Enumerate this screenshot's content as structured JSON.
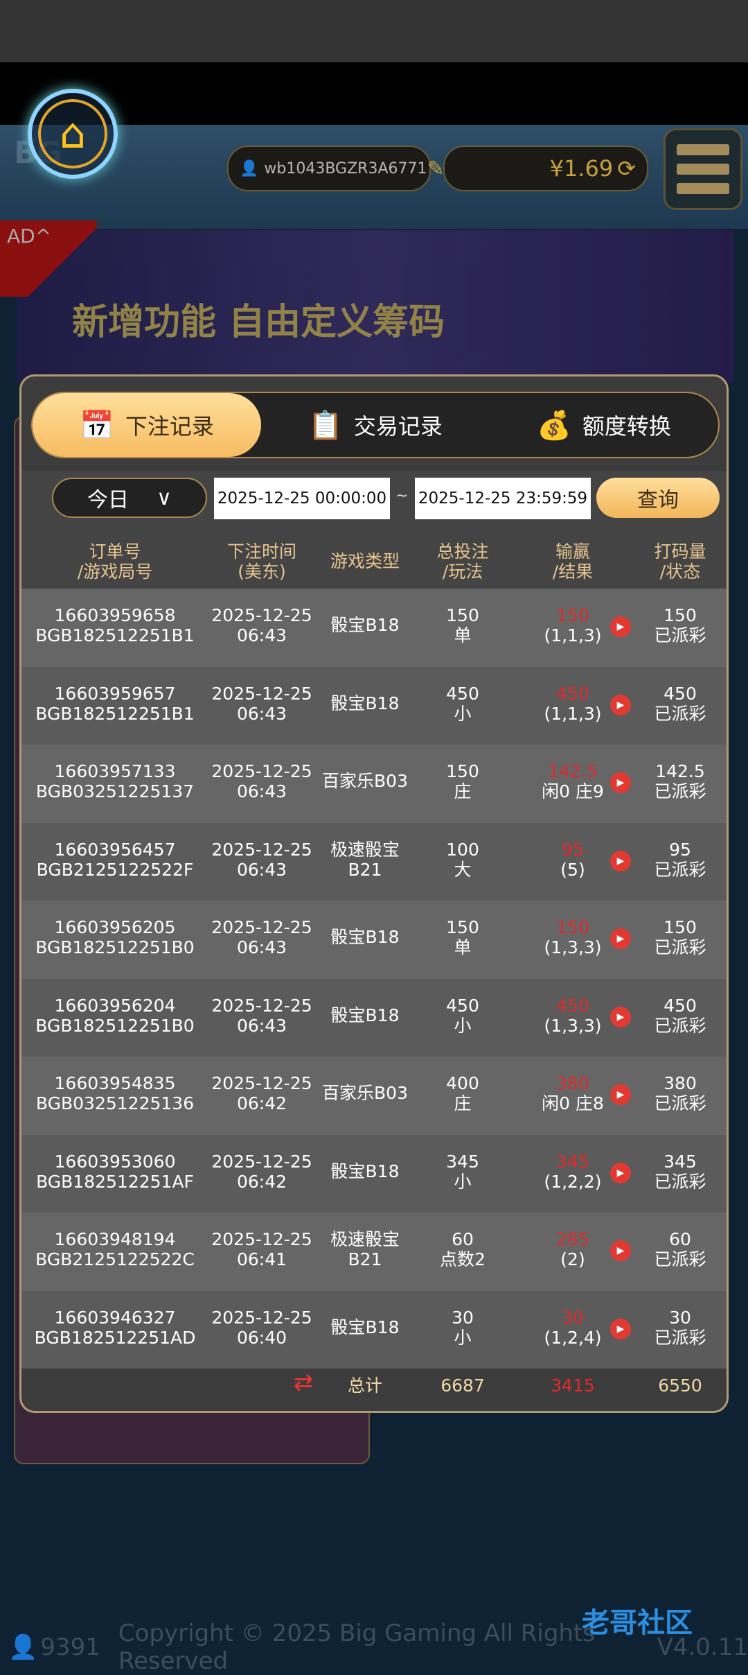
{
  "header": {
    "username": "wb1043BGZR3A6771",
    "balance": "¥1.69",
    "logo": "BG GAMING"
  },
  "ad": {
    "label": "AD^",
    "banner_text": "新增功能 自由定义筹码"
  },
  "tabs": [
    {
      "label": "下注记录",
      "icon": "calendar-icon",
      "active": true
    },
    {
      "label": "交易记录",
      "icon": "clipboard-icon"
    },
    {
      "label": "额度转换",
      "icon": "coins-icon"
    }
  ],
  "filter": {
    "range": "今日",
    "start": "2025-12-25 00:00:00",
    "sep": "~",
    "end": "2025-12-25 23:59:59",
    "query": "查询"
  },
  "columns": [
    [
      "订单号",
      "/游戏局号"
    ],
    [
      "下注时间",
      "(美东)"
    ],
    [
      "游戏类型"
    ],
    [
      "总投注",
      "/玩法"
    ],
    [
      "输赢",
      "/结果"
    ],
    [
      "打码量",
      "/状态"
    ]
  ],
  "rows": [
    {
      "order": "16603959658",
      "round": "BGB182512251B1",
      "date": "2025-12-25",
      "time": "06:43",
      "game": "骰宝B18",
      "game2": "",
      "bet": "150",
      "play": "单",
      "win": "150",
      "result": "(1,1,3)",
      "turnover": "150",
      "status": "已派彩"
    },
    {
      "order": "16603959657",
      "round": "BGB182512251B1",
      "date": "2025-12-25",
      "time": "06:43",
      "game": "骰宝B18",
      "game2": "",
      "bet": "450",
      "play": "小",
      "win": "450",
      "result": "(1,1,3)",
      "turnover": "450",
      "status": "已派彩"
    },
    {
      "order": "16603957133",
      "round": "BGB03251225137",
      "date": "2025-12-25",
      "time": "06:43",
      "game": "百家乐B03",
      "game2": "",
      "bet": "150",
      "play": "庄",
      "win": "142.5",
      "result": "闲0 庄9",
      "turnover": "142.5",
      "status": "已派彩"
    },
    {
      "order": "16603956457",
      "round": "BGB2125122522F",
      "date": "2025-12-25",
      "time": "06:43",
      "game": "极速骰宝",
      "game2": "B21",
      "bet": "100",
      "play": "大",
      "win": "95",
      "result": "(5)",
      "turnover": "95",
      "status": "已派彩"
    },
    {
      "order": "16603956205",
      "round": "BGB182512251B0",
      "date": "2025-12-25",
      "time": "06:43",
      "game": "骰宝B18",
      "game2": "",
      "bet": "150",
      "play": "单",
      "win": "150",
      "result": "(1,3,3)",
      "turnover": "150",
      "status": "已派彩"
    },
    {
      "order": "16603956204",
      "round": "BGB182512251B0",
      "date": "2025-12-25",
      "time": "06:43",
      "game": "骰宝B18",
      "game2": "",
      "bet": "450",
      "play": "小",
      "win": "450",
      "result": "(1,3,3)",
      "turnover": "450",
      "status": "已派彩"
    },
    {
      "order": "16603954835",
      "round": "BGB03251225136",
      "date": "2025-12-25",
      "time": "06:42",
      "game": "百家乐B03",
      "game2": "",
      "bet": "400",
      "play": "庄",
      "win": "380",
      "result": "闲0 庄8",
      "turnover": "380",
      "status": "已派彩"
    },
    {
      "order": "16603953060",
      "round": "BGB182512251AF",
      "date": "2025-12-25",
      "time": "06:42",
      "game": "骰宝B18",
      "game2": "",
      "bet": "345",
      "play": "小",
      "win": "345",
      "result": "(1,2,2)",
      "turnover": "345",
      "status": "已派彩"
    },
    {
      "order": "16603948194",
      "round": "BGB2125122522C",
      "date": "2025-12-25",
      "time": "06:41",
      "game": "极速骰宝",
      "game2": "B21",
      "bet": "60",
      "play": "点数2",
      "win": "285",
      "result": "(2)",
      "turnover": "60",
      "status": "已派彩"
    },
    {
      "order": "16603946327",
      "round": "BGB182512251AD",
      "date": "2025-12-25",
      "time": "06:40",
      "game": "骰宝B18",
      "game2": "",
      "bet": "30",
      "play": "小",
      "win": "30",
      "result": "(1,2,4)",
      "turnover": "30",
      "status": "已派彩"
    }
  ],
  "total": {
    "label": "总计",
    "bet": "6687",
    "win": "3415",
    "turnover": "6550"
  },
  "footer": {
    "online": "9391",
    "copyright": "Copyright © 2025 Big Gaming All Rights Reserved",
    "version": "V4.0.11",
    "watermark": "老哥社区"
  },
  "colors": {
    "accent": "#f7bc62",
    "win": "#e02a2a",
    "header_text": "#e6c58f"
  }
}
